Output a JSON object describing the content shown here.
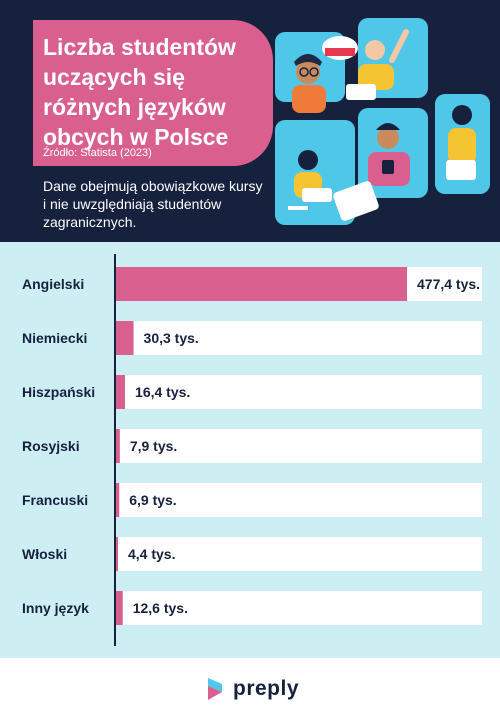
{
  "header": {
    "title": "Liczba studentów uczących się różnych języków obcych w Polsce",
    "source": "Źródło: Statista (2023)",
    "note": "Dane obejmują obowiązkowe kursy i nie uwzględniają studentów zagranicznych."
  },
  "footer": {
    "brand": "preply"
  },
  "colors": {
    "bar": "#d9608e",
    "background": "#cdeff4",
    "header": "#16213e",
    "track": "#ffffff",
    "axis": "#16213e"
  },
  "chart_data": {
    "type": "bar",
    "orientation": "horizontal",
    "title": "Liczba studentów uczących się różnych języków obcych w Polsce",
    "categories": [
      "Angielski",
      "Niemiecki",
      "Hiszpański",
      "Rosyjski",
      "Francuski",
      "Włoski",
      "Inny język"
    ],
    "values": [
      477.4,
      30.3,
      16.4,
      7.9,
      6.9,
      4.4,
      12.6
    ],
    "data_labels": [
      "477,4 tys.",
      "30,3 tys.",
      "16,4 tys.",
      "7,9 tys.",
      "6,9 tys.",
      "4,4 tys.",
      "12,6 tys."
    ],
    "unit": "tys.",
    "xlim": [
      0,
      600
    ],
    "grid": false,
    "legend": "none"
  }
}
